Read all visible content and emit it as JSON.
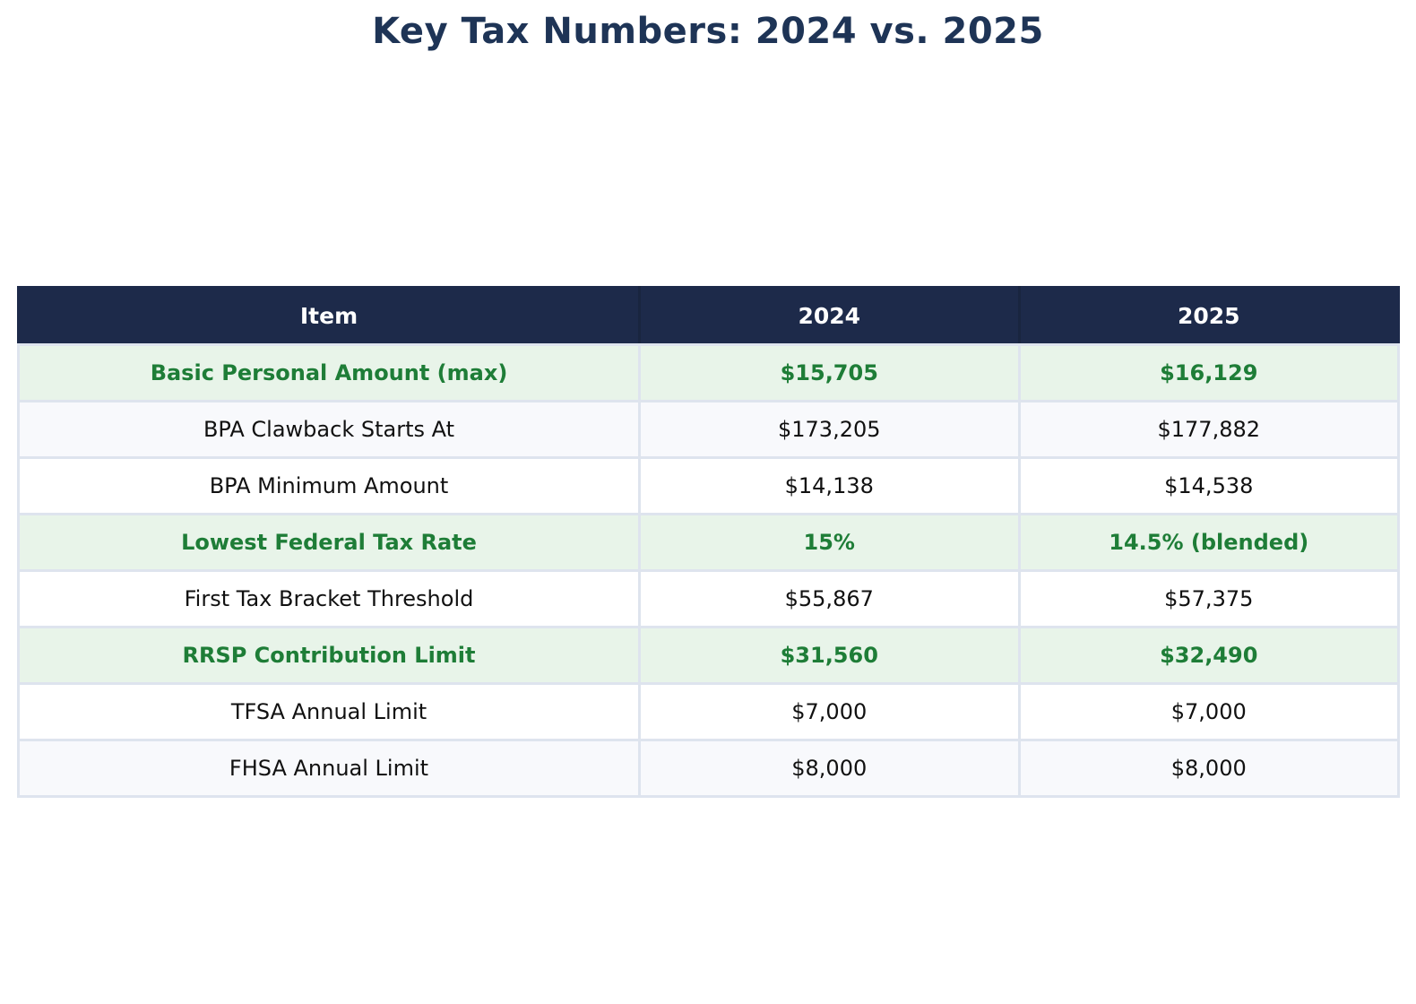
{
  "colors": {
    "header_bg": "#1d2a4a",
    "header_text": "#ffffff",
    "highlight_bg": "#e8f4e9",
    "highlight_text": "#1e7d37",
    "stripe_bg": "#f8f9fc",
    "row_bg": "#ffffff",
    "divider": "#dee4ee",
    "body_text": "#111111",
    "title_text": "#1e3456"
  },
  "chart_data": {
    "type": "table",
    "title": "Key Tax Numbers: 2024 vs. 2025",
    "columns": [
      "Item",
      "2024",
      "2025"
    ],
    "rows": [
      {
        "item": "Basic Personal Amount (max)",
        "v2024": "$15,705",
        "v2025": "$16,129",
        "highlight": true
      },
      {
        "item": "BPA Clawback Starts At",
        "v2024": "$173,205",
        "v2025": "$177,882",
        "highlight": false
      },
      {
        "item": "BPA Minimum Amount",
        "v2024": "$14,138",
        "v2025": "$14,538",
        "highlight": false
      },
      {
        "item": "Lowest Federal Tax Rate",
        "v2024": "15%",
        "v2025": "14.5% (blended)",
        "highlight": true
      },
      {
        "item": "First Tax Bracket Threshold",
        "v2024": "$55,867",
        "v2025": "$57,375",
        "highlight": false
      },
      {
        "item": "RRSP Contribution Limit",
        "v2024": "$31,560",
        "v2025": "$32,490",
        "highlight": true
      },
      {
        "item": "TFSA Annual Limit",
        "v2024": "$7,000",
        "v2025": "$7,000",
        "highlight": false
      },
      {
        "item": "FHSA Annual Limit",
        "v2024": "$8,000",
        "v2025": "$8,000",
        "highlight": false
      }
    ]
  }
}
